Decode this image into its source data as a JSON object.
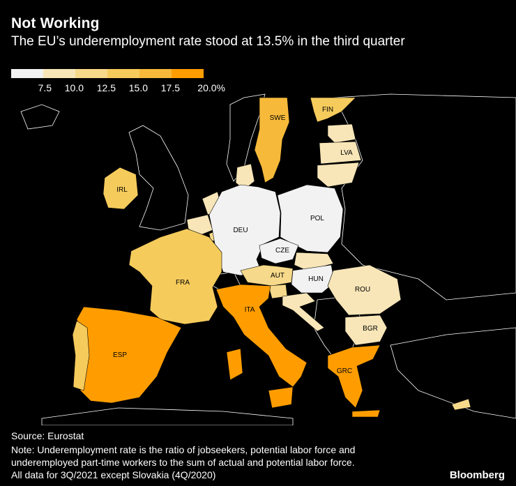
{
  "header": {
    "title": "Not Working",
    "subtitle": "The EU’s underemployment rate stood at 13.5% in the third quarter"
  },
  "legend": {
    "colors": [
      "#f2f2f2",
      "#f8e6b8",
      "#f6d98a",
      "#f5cb5c",
      "#f6b93a",
      "#ff9d00"
    ],
    "labels": [
      "7.5",
      "10.0",
      "12.5",
      "15.0",
      "17.5",
      "20.0%"
    ]
  },
  "map": {
    "background_color": "#000000",
    "land_color": "#000000",
    "border_color": "#ffffff",
    "countries": [
      {
        "code": "SWE",
        "label": "SWE",
        "color": "#f6b93a"
      },
      {
        "code": "FIN",
        "label": "FIN",
        "color": "#f5cb5c"
      },
      {
        "code": "LVA",
        "label": "LVA",
        "color": "#f8e6b8"
      },
      {
        "code": "EST",
        "label": "",
        "color": "#f8e6b8"
      },
      {
        "code": "LTU",
        "label": "",
        "color": "#f8e6b8"
      },
      {
        "code": "IRL",
        "label": "IRL",
        "color": "#f5cb5c"
      },
      {
        "code": "DNK",
        "label": "",
        "color": "#f8e6b8"
      },
      {
        "code": "NLD",
        "label": "",
        "color": "#f8e6b8"
      },
      {
        "code": "BEL",
        "label": "",
        "color": "#f8e6b8"
      },
      {
        "code": "LUX",
        "label": "",
        "color": "#f6d98a"
      },
      {
        "code": "DEU",
        "label": "DEU",
        "color": "#f2f2f2"
      },
      {
        "code": "POL",
        "label": "POL",
        "color": "#f2f2f2"
      },
      {
        "code": "CZE",
        "label": "CZE",
        "color": "#f2f2f2"
      },
      {
        "code": "SVK",
        "label": "",
        "color": "#f8e6b8"
      },
      {
        "code": "AUT",
        "label": "AUT",
        "color": "#f6d98a"
      },
      {
        "code": "HUN",
        "label": "HUN",
        "color": "#f2f2f2"
      },
      {
        "code": "SVN",
        "label": "",
        "color": "#f6d98a"
      },
      {
        "code": "HRV",
        "label": "",
        "color": "#f8e6b8"
      },
      {
        "code": "FRA",
        "label": "FRA",
        "color": "#f5cb5c"
      },
      {
        "code": "ROU",
        "label": "ROU",
        "color": "#f8e6b8"
      },
      {
        "code": "BGR",
        "label": "BGR",
        "color": "#f8e6b8"
      },
      {
        "code": "ITA",
        "label": "ITA",
        "color": "#ff9d00"
      },
      {
        "code": "ESP",
        "label": "ESP",
        "color": "#ff9d00"
      },
      {
        "code": "PRT",
        "label": "",
        "color": "#f5cb5c"
      },
      {
        "code": "GRC",
        "label": "GRC",
        "color": "#ff9d00"
      },
      {
        "code": "CYP",
        "label": "",
        "color": "#f6d98a"
      }
    ]
  },
  "footer": {
    "source": "Source: Eurostat",
    "note_lines": [
      "Note: Underemployment rate is the ratio of jobseekers, potential labor force and",
      "underemployed part-time workers to the sum of actual and potential labor force.",
      "All data for 3Q/2021 except Slovakia (4Q/2020)"
    ],
    "brand": "Bloomberg"
  }
}
